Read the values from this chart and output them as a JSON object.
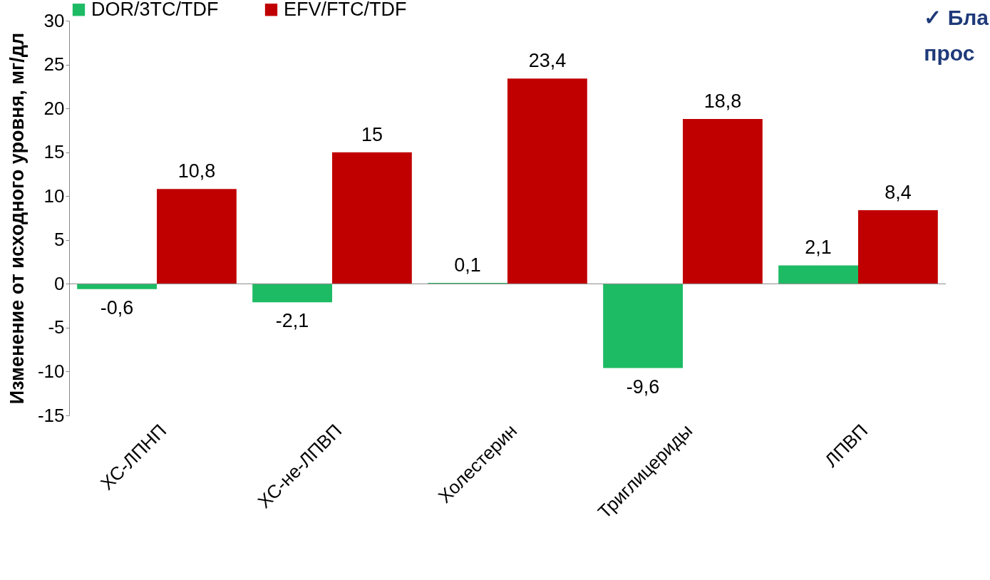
{
  "chart_data": {
    "type": "bar",
    "ylabel": "Изменение от исходного уровня, мг/дл",
    "categories": [
      "ХС-ЛПНП",
      "ХС-не-ЛПВП",
      "Холестерин",
      "Триглицериды",
      "ЛПВП"
    ],
    "series": [
      {
        "name": "DOR/3TC/TDF",
        "color": "#1dbb64",
        "values": [
          -0.6,
          -2.1,
          0.1,
          -9.6,
          2.1
        ],
        "value_labels": [
          "-0,6",
          "-2,1",
          "0,1",
          "-9,6",
          "2,1"
        ]
      },
      {
        "name": "EFV/FTC/TDF",
        "color": "#c00000",
        "values": [
          10.8,
          15,
          23.4,
          18.8,
          8.4
        ],
        "value_labels": [
          "10,8",
          "15",
          "23,4",
          "18,8",
          "8,4"
        ]
      }
    ],
    "ylim": [
      -15,
      30
    ],
    "yticks": [
      -15,
      -10,
      -5,
      0,
      5,
      10,
      15,
      20,
      25,
      30
    ],
    "legend": "top",
    "annotations": [
      "✓ Бла",
      "прос"
    ]
  }
}
